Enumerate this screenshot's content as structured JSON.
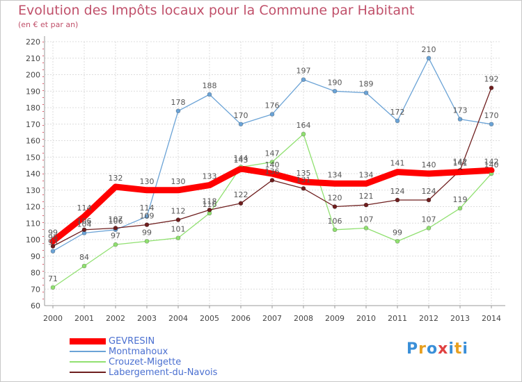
{
  "title": "Evolution des Impôts locaux pour la Commune par Habitant",
  "subtitle": "(en € et par an)",
  "logo": {
    "text": "Proxiti",
    "colors": [
      "#3a8fd8",
      "#e8a020",
      "#3a8fd8",
      "#e04040",
      "#3a8fd8",
      "#e8a020",
      "#3a8fd8"
    ]
  },
  "chart_data": {
    "type": "line",
    "x": [
      "2000",
      "2001",
      "2002",
      "2003",
      "2004",
      "2005",
      "2006",
      "2007",
      "2008",
      "2009",
      "2010",
      "2011",
      "2012",
      "2013",
      "2014"
    ],
    "ylim": [
      60,
      220
    ],
    "yticks": [
      60,
      70,
      80,
      90,
      100,
      110,
      120,
      130,
      140,
      150,
      160,
      170,
      180,
      190,
      200,
      210,
      220
    ],
    "grid": true,
    "legend_position": "bottom-left",
    "series": [
      {
        "name": "GEVRESIN",
        "color": "#ff0000",
        "values": [
          99,
          114,
          132,
          130,
          130,
          133,
          143,
          140,
          135,
          134,
          134,
          141,
          140,
          141,
          142
        ]
      },
      {
        "name": "Montmahoux",
        "color": "#6ba3d6",
        "values": [
          93,
          104,
          106,
          114,
          178,
          188,
          170,
          176,
          197,
          190,
          189,
          172,
          210,
          173,
          170
        ]
      },
      {
        "name": "Crouzet-Migette",
        "color": "#90e070",
        "values": [
          71,
          84,
          97,
          99,
          101,
          116,
          144,
          147,
          164,
          106,
          107,
          99,
          107,
          119,
          140
        ]
      },
      {
        "name": "Labergement-du-Navois",
        "color": "#6e1e1e",
        "values": [
          96,
          106,
          107,
          109,
          112,
          118,
          122,
          136,
          131,
          120,
          121,
          124,
          124,
          142,
          192
        ]
      }
    ]
  }
}
